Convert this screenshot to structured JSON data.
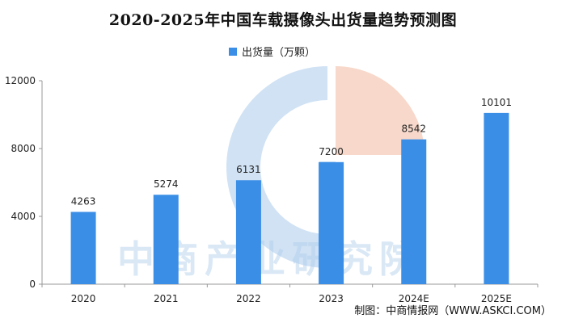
{
  "chart_data": {
    "type": "bar",
    "title": "2020-2025年中国车载摄像头出货量趋势预测图",
    "categories": [
      "2020",
      "2021",
      "2022",
      "2023",
      "2024E",
      "2025E"
    ],
    "series": [
      {
        "name": "出货量（万颗）",
        "values": [
          4263,
          5274,
          6131,
          7200,
          8542,
          10101
        ]
      }
    ],
    "ylim": [
      0,
      12000
    ],
    "yticks": [
      0,
      4000,
      8000,
      12000
    ],
    "grid": false,
    "legend_position": "top-center",
    "bar_color": "#3a8ee6"
  },
  "watermark": {
    "text": "中商产业研究院",
    "logo_colors": [
      "#bcd6ef",
      "#f3c7b4"
    ]
  },
  "footer": "制图：中商情报网（WWW.ASKCI.COM）"
}
